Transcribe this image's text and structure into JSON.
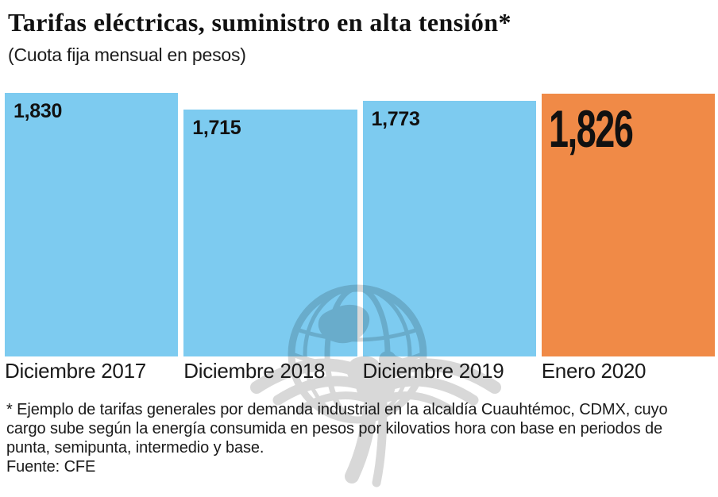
{
  "chart_data": {
    "type": "bar",
    "title": "Tarifas eléctricas, suministro en alta tensión*",
    "subtitle": "(Cuota fija mensual en pesos)",
    "categories": [
      "Diciembre 2017",
      "Diciembre 2018",
      "Diciembre 2019",
      "Enero 2020"
    ],
    "values": [
      1830,
      1715,
      1773,
      1826
    ],
    "value_labels": [
      "1,830",
      "1,715",
      "1,773",
      "1,826"
    ],
    "ylim": [
      0,
      1830
    ],
    "bar_colors": [
      "#7dcbf0",
      "#7dcbf0",
      "#7dcbf0",
      "#f08a47"
    ],
    "highlight_index": 3,
    "grid": false,
    "legend": false,
    "xlabel": "",
    "ylabel": ""
  },
  "colors": {
    "blue": "#7dcbf0",
    "orange": "#f08a47",
    "text": "#1a1a1a",
    "watermark_gray": "#000000"
  },
  "footnote": {
    "lines": [
      "* Ejemplo de tarifas generales por demanda industrial en la alcaldía Cuauhtémoc, CDMX, cuyo",
      "cargo sube según la energía consumida en pesos por kilovatios hora con base en periodos de",
      "punta, semipunta, intermedio y base."
    ],
    "source": "Fuente: CFE"
  },
  "watermark": {
    "icon": "el-universal-eagle-globe-logo"
  }
}
